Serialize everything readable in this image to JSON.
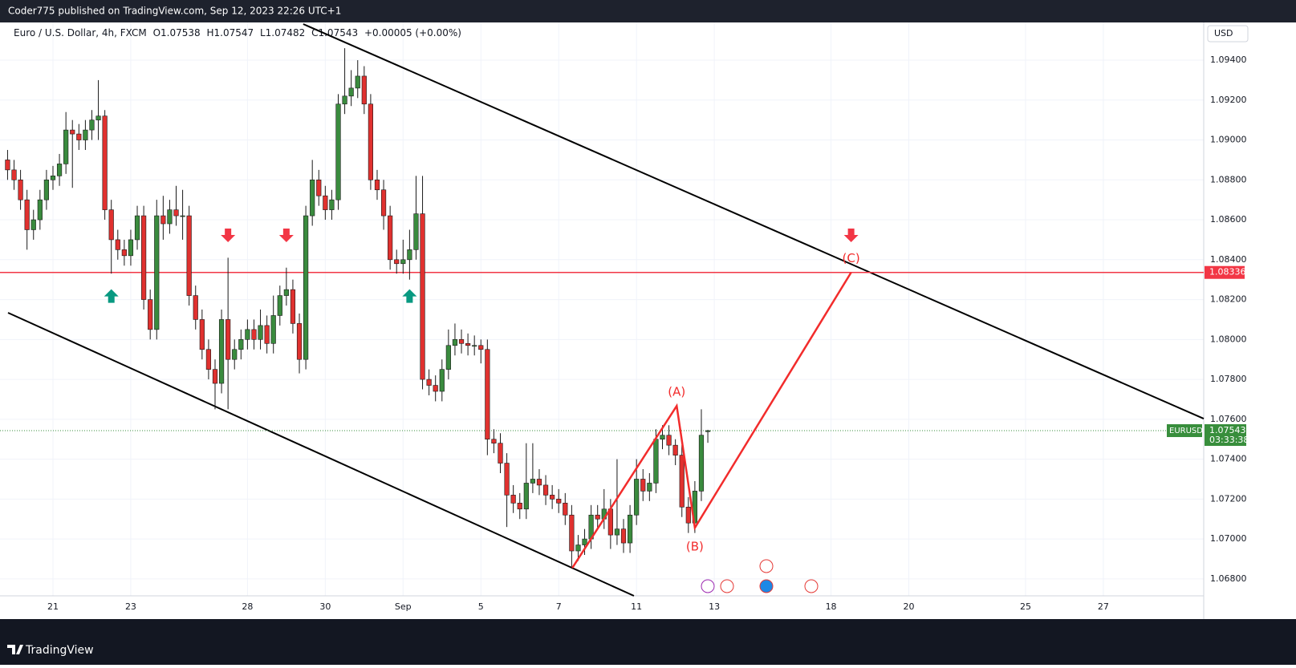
{
  "chart_data": {
    "type": "candlestick",
    "publisher_note": "Coder775 published on TradingView.com, Sep 12, 2023 22:26 UTC+1",
    "symbol": "Euro / U.S. Dollar, 4h, FXCM",
    "ohlc_legend": [
      {
        "label": "O",
        "value": 1.07538
      },
      {
        "label": "H",
        "value": 1.07547
      },
      {
        "label": "L",
        "value": 1.07482
      },
      {
        "label": "C",
        "value": 1.07543
      }
    ],
    "change": "+0.00005 (+0.00%)",
    "currency": "USD",
    "brand": "TradingView",
    "x": [
      -7,
      -6,
      -5,
      -4,
      -3,
      -2,
      -1,
      0,
      1,
      2,
      3,
      4,
      5,
      6,
      7,
      8,
      9,
      10,
      11,
      12,
      13,
      14,
      15,
      16,
      17,
      18,
      19,
      20,
      21,
      22,
      23,
      24,
      25,
      26,
      27,
      28,
      29,
      30,
      31,
      32,
      33,
      34,
      35,
      36,
      37,
      38,
      39,
      40,
      41,
      42,
      43,
      44,
      45,
      46,
      47,
      48,
      49,
      50,
      51,
      52,
      53,
      54,
      55,
      56,
      57,
      58,
      59,
      60,
      61,
      62,
      63,
      64,
      65,
      66,
      67,
      68,
      69,
      70,
      71,
      72,
      73,
      74,
      75,
      76,
      77,
      78,
      79,
      80,
      81,
      82,
      83,
      84,
      85,
      86,
      87,
      88,
      89,
      90,
      91,
      92,
      93,
      94,
      95,
      96,
      97,
      98,
      99,
      100,
      101
    ],
    "open": [
      1.089,
      1.0885,
      1.088,
      1.087,
      1.0855,
      1.086,
      1.087,
      1.088,
      1.0882,
      1.0888,
      1.0905,
      1.0903,
      1.09,
      1.0905,
      1.091,
      1.0912,
      1.0865,
      1.085,
      1.0845,
      1.0842,
      1.085,
      1.0862,
      1.082,
      1.0805,
      1.0862,
      1.0858,
      1.0865,
      1.0862,
      1.0862,
      1.0822,
      1.081,
      1.0795,
      1.0785,
      1.0778,
      1.081,
      1.079,
      1.0795,
      1.08,
      1.0805,
      1.08,
      1.0807,
      1.0798,
      1.0812,
      1.0822,
      1.0825,
      1.0808,
      1.079,
      1.0862,
      1.088,
      1.0872,
      1.0865,
      1.087,
      1.0918,
      1.0922,
      1.0926,
      1.0932,
      1.0918,
      1.088,
      1.0875,
      1.0862,
      1.084,
      1.0838,
      1.084,
      1.0845,
      1.0863,
      1.078,
      1.0777,
      1.0774,
      1.0785,
      1.0797,
      1.08,
      1.0798,
      1.0797,
      1.0797,
      1.0795,
      1.075,
      1.0748,
      1.0738,
      1.0722,
      1.0718,
      1.0715,
      1.0728,
      1.073,
      1.0727,
      1.0722,
      1.072,
      1.0718,
      1.0712,
      1.0694,
      1.0697,
      1.07,
      1.0712,
      1.071,
      1.0715,
      1.0702,
      1.0705,
      1.0698,
      1.0712,
      1.073,
      1.0724,
      1.0728,
      1.075,
      1.0752,
      1.0747,
      1.0742,
      1.0716,
      1.0708,
      1.0724,
      1.07538
    ],
    "high": [
      1.0895,
      1.089,
      1.0885,
      1.0875,
      1.0865,
      1.0875,
      1.0885,
      1.0887,
      1.0893,
      1.0914,
      1.091,
      1.0908,
      1.091,
      1.0915,
      1.093,
      1.0915,
      1.087,
      1.0855,
      1.085,
      1.0855,
      1.0867,
      1.0867,
      1.0825,
      1.087,
      1.0872,
      1.087,
      1.0877,
      1.0875,
      1.0867,
      1.0827,
      1.0815,
      1.08,
      1.079,
      1.0815,
      1.0841,
      1.08,
      1.0805,
      1.081,
      1.081,
      1.0815,
      1.0812,
      1.0822,
      1.0827,
      1.0836,
      1.083,
      1.0813,
      1.0867,
      1.089,
      1.0885,
      1.0877,
      1.0875,
      1.0923,
      1.0946,
      1.0935,
      1.094,
      1.0937,
      1.0923,
      1.0885,
      1.088,
      1.0867,
      1.0845,
      1.085,
      1.0855,
      1.0882,
      1.0882,
      1.0785,
      1.0782,
      1.079,
      1.0805,
      1.0808,
      1.0805,
      1.0803,
      1.0802,
      1.08,
      1.08,
      1.0755,
      1.0753,
      1.0743,
      1.0727,
      1.0723,
      1.0748,
      1.0748,
      1.0735,
      1.0732,
      1.0727,
      1.0725,
      1.0723,
      1.0717,
      1.0702,
      1.0705,
      1.0717,
      1.0717,
      1.0725,
      1.072,
      1.074,
      1.071,
      1.0717,
      1.074,
      1.0735,
      1.0733,
      1.0755,
      1.0757,
      1.0757,
      1.075,
      1.0747,
      1.0721,
      1.0729,
      1.0765,
      1.07547
    ],
    "low": [
      1.088,
      1.0875,
      1.0865,
      1.0845,
      1.085,
      1.0855,
      1.0865,
      1.0875,
      1.0877,
      1.0883,
      1.0876,
      1.0895,
      1.0895,
      1.09,
      1.09,
      1.086,
      1.0833,
      1.084,
      1.0837,
      1.0837,
      1.0845,
      1.0815,
      1.08,
      1.08,
      1.085,
      1.0853,
      1.0857,
      1.085,
      1.0817,
      1.0805,
      1.079,
      1.078,
      1.0765,
      1.0773,
      1.0765,
      1.0785,
      1.079,
      1.0795,
      1.0795,
      1.0795,
      1.0793,
      1.0793,
      1.0807,
      1.0817,
      1.0803,
      1.0783,
      1.0785,
      1.0857,
      1.0867,
      1.086,
      1.086,
      1.0865,
      1.0913,
      1.0917,
      1.0921,
      1.0913,
      1.0875,
      1.087,
      1.0855,
      1.0835,
      1.0833,
      1.0833,
      1.083,
      1.084,
      1.0775,
      1.0772,
      1.0769,
      1.0769,
      1.078,
      1.0792,
      1.0793,
      1.0792,
      1.0792,
      1.0788,
      1.0742,
      1.0743,
      1.0733,
      1.0706,
      1.0713,
      1.071,
      1.071,
      1.0723,
      1.0722,
      1.0717,
      1.0715,
      1.0713,
      1.0707,
      1.0686,
      1.0689,
      1.0692,
      1.0695,
      1.0705,
      1.0705,
      1.0695,
      1.0697,
      1.0693,
      1.0693,
      1.0707,
      1.0719,
      1.0719,
      1.0723,
      1.0745,
      1.0742,
      1.0737,
      1.0711,
      1.0703,
      1.0703,
      1.0719,
      1.07482
    ],
    "close": [
      1.0885,
      1.088,
      1.087,
      1.0855,
      1.086,
      1.087,
      1.088,
      1.0882,
      1.0888,
      1.0905,
      1.0903,
      1.09,
      1.0905,
      1.091,
      1.0912,
      1.0865,
      1.085,
      1.0845,
      1.0842,
      1.085,
      1.0862,
      1.082,
      1.0805,
      1.0862,
      1.0858,
      1.0865,
      1.0862,
      1.0862,
      1.0822,
      1.081,
      1.0795,
      1.0785,
      1.0778,
      1.081,
      1.079,
      1.0795,
      1.08,
      1.0805,
      1.08,
      1.0807,
      1.0798,
      1.0812,
      1.0822,
      1.0825,
      1.0808,
      1.079,
      1.0862,
      1.088,
      1.0872,
      1.0865,
      1.087,
      1.0918,
      1.0922,
      1.0926,
      1.0932,
      1.0918,
      1.088,
      1.0875,
      1.0862,
      1.084,
      1.0838,
      1.084,
      1.0845,
      1.0863,
      1.078,
      1.0777,
      1.0774,
      1.0785,
      1.0797,
      1.08,
      1.0798,
      1.0797,
      1.0797,
      1.0795,
      1.075,
      1.0748,
      1.0738,
      1.0722,
      1.0718,
      1.0715,
      1.0728,
      1.073,
      1.0727,
      1.0722,
      1.072,
      1.0718,
      1.0712,
      1.0694,
      1.0697,
      1.07,
      1.0712,
      1.071,
      1.0715,
      1.0702,
      1.0705,
      1.0698,
      1.0712,
      1.073,
      1.0724,
      1.0728,
      1.075,
      1.0752,
      1.0747,
      1.0742,
      1.0716,
      1.0708,
      1.0724,
      1.0752,
      1.07543
    ],
    "colors": {
      "up": "#3a8b3e",
      "down": "#e0312f",
      "wick": "#1a1a1a",
      "level": "#f23645",
      "wave": "#f22c2c",
      "trend": "#000000",
      "last": "#388e3c",
      "arrow_up": "#089981",
      "arrow_down": "#f23645"
    },
    "xlim": [
      -6.93,
      177.48
    ],
    "ylim": [
      1.06715,
      1.09581
    ],
    "xticks": [
      {
        "value": 0,
        "label": "21"
      },
      {
        "value": 12,
        "label": "23"
      },
      {
        "value": 30,
        "label": "28"
      },
      {
        "value": 42,
        "label": "30"
      },
      {
        "value": 54,
        "label": "Sep"
      },
      {
        "value": 66,
        "label": "5"
      },
      {
        "value": 78,
        "label": "7"
      },
      {
        "value": 90,
        "label": "11"
      },
      {
        "value": 102,
        "label": "13"
      },
      {
        "value": 120,
        "label": "18"
      },
      {
        "value": 132,
        "label": "20"
      },
      {
        "value": 150,
        "label": "25"
      },
      {
        "value": 162,
        "label": "27"
      }
    ],
    "yticks": [
      {
        "value": 1.068,
        "label": "1.06800"
      },
      {
        "value": 1.07,
        "label": "1.07000"
      },
      {
        "value": 1.072,
        "label": "1.07200"
      },
      {
        "value": 1.074,
        "label": "1.07400"
      },
      {
        "value": 1.076,
        "label": "1.07600"
      },
      {
        "value": 1.078,
        "label": "1.07800"
      },
      {
        "value": 1.08,
        "label": "1.08000"
      },
      {
        "value": 1.082,
        "label": "1.08200"
      },
      {
        "value": 1.084,
        "label": "1.08400"
      },
      {
        "value": 1.086,
        "label": "1.08600"
      },
      {
        "value": 1.088,
        "label": "1.08800"
      },
      {
        "value": 1.09,
        "label": "1.09000"
      },
      {
        "value": 1.092,
        "label": "1.09200"
      },
      {
        "value": 1.094,
        "label": "1.09400"
      }
    ],
    "grid": true,
    "level": 1.08336,
    "last_price": 1.07543,
    "last_label": "EURUSD",
    "countdown": "03:33:38",
    "trendlines": [
      [
        [
          38.6,
          1.09581
        ],
        [
          177.48,
          1.07603
        ]
      ],
      [
        [
          -6.93,
          1.08134
        ],
        [
          89.6,
          1.06715
        ]
      ]
    ],
    "wave": {
      "points": [
        [
          80.1,
          1.06855
        ],
        [
          96.2,
          1.07667
        ],
        [
          99.0,
          1.07056
        ],
        [
          123.1,
          1.08336
        ]
      ],
      "labels": [
        "(A)",
        "(B)",
        "(C)"
      ]
    },
    "arrows": [
      {
        "x": 9,
        "y": 1.0822,
        "dir": "up"
      },
      {
        "x": 55,
        "y": 1.0822,
        "dir": "up"
      },
      {
        "x": 27,
        "y": 1.0852,
        "dir": "down"
      },
      {
        "x": 36,
        "y": 1.0852,
        "dir": "down"
      },
      {
        "x": 123.1,
        "y": 1.0852,
        "dir": "down"
      }
    ]
  }
}
